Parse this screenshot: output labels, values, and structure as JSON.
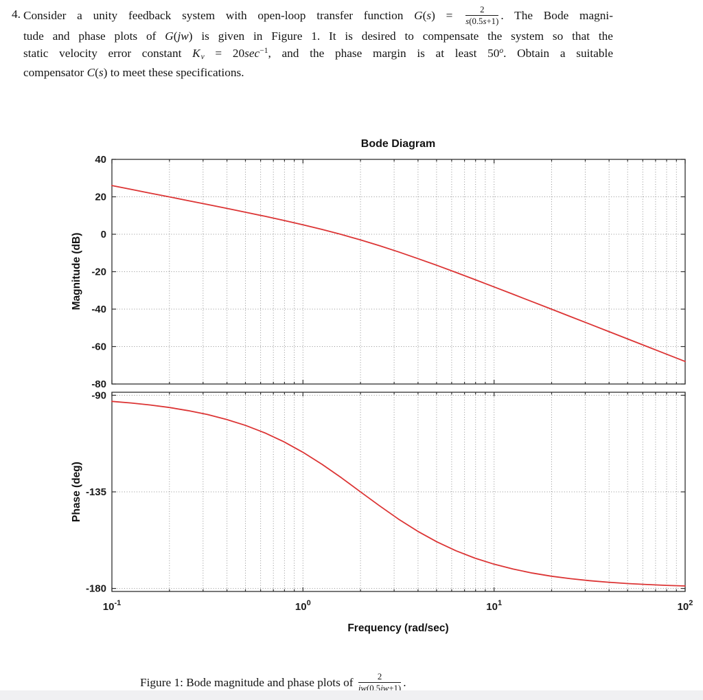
{
  "page": {
    "background": "#ffffff",
    "bottom_strip_color": "#f0f0f2"
  },
  "problem": {
    "number": "4.",
    "lines": [
      [
        {
          "t": "Consider a unity feedback system with open-loop transfer function "
        },
        {
          "t": "G",
          "i": 1
        },
        {
          "t": "("
        },
        {
          "t": "s",
          "i": 1
        },
        {
          "t": ") = "
        },
        {
          "frac": {
            "num": [
              {
                "t": "2"
              }
            ],
            "den": [
              {
                "t": "s",
                "i": 1
              },
              {
                "t": "(0.5"
              },
              {
                "t": "s",
                "i": 1
              },
              {
                "t": "+1)"
              }
            ]
          }
        },
        {
          "t": ". The Bode magni-"
        }
      ],
      [
        {
          "t": "tude and phase plots of "
        },
        {
          "t": "G",
          "i": 1
        },
        {
          "t": "("
        },
        {
          "t": "jw",
          "i": 1
        },
        {
          "t": ") is given in Figure 1. It is desired to compensate the system so that the"
        }
      ],
      [
        {
          "t": "static velocity error constant "
        },
        {
          "t": "K",
          "i": 1
        },
        {
          "t": "v",
          "i": 1,
          "sub": 1
        },
        {
          "t": " = 20"
        },
        {
          "t": "sec",
          "i": 1
        },
        {
          "t": "−1",
          "sup": 1
        },
        {
          "t": ", and the phase margin is at least 50"
        },
        {
          "t": "o",
          "i": 1,
          "sup": 1
        },
        {
          "t": ". Obtain a suitable"
        }
      ],
      [
        {
          "t": "compensator "
        },
        {
          "t": "C",
          "i": 1
        },
        {
          "t": "("
        },
        {
          "t": "s",
          "i": 1
        },
        {
          "t": ") to meet these specifications."
        }
      ]
    ]
  },
  "figure": {
    "caption": [
      {
        "t": "Figure 1: Bode magnitude and phase plots of "
      },
      {
        "frac": {
          "num": [
            {
              "t": "2"
            }
          ],
          "den": [
            {
              "t": "jw",
              "i": 1
            },
            {
              "t": "(0.5"
            },
            {
              "t": "jw",
              "i": 1
            },
            {
              "t": "+1)"
            }
          ]
        }
      },
      {
        "t": "."
      }
    ]
  },
  "chart_data": {
    "type": "line",
    "title": "Bode Diagram",
    "xlabel": "Frequency  (rad/sec)",
    "x_scale": "log",
    "xlim": [
      0.1,
      100
    ],
    "x_major_ticks": [
      0.1,
      1,
      10,
      100
    ],
    "x_tick_labels": [
      {
        "base": "10",
        "exp": "-1"
      },
      {
        "base": "10",
        "exp": "0"
      },
      {
        "base": "10",
        "exp": "1"
      },
      {
        "base": "10",
        "exp": "2"
      }
    ],
    "grid": true,
    "legend": "none",
    "line_color": "#dc3434",
    "grid_color": "#8f8f8f",
    "axis_color": "#2f2f2f",
    "subplots": [
      {
        "name": "magnitude",
        "ylabel": "Magnitude (dB)",
        "ylim": [
          40,
          -80
        ],
        "yticks": [
          40,
          20,
          0,
          -20,
          -40,
          -60,
          -80
        ],
        "grid_lines": [
          20,
          0,
          -20,
          -40,
          -60
        ]
      },
      {
        "name": "phase",
        "ylabel": "Phase (deg)",
        "ylim": [
          -90,
          -180
        ],
        "yticks": [
          -90,
          -135,
          -180
        ],
        "grid_lines": [
          -90,
          -135,
          -180
        ]
      }
    ],
    "series": {
      "name": "G(jw) = 2/(jw(0.5jw+1))",
      "freq_rad_per_sec": [
        0.1,
        0.126,
        0.158,
        0.2,
        0.251,
        0.316,
        0.398,
        0.501,
        0.631,
        0.794,
        1,
        1.259,
        1.585,
        1.995,
        2.512,
        3.162,
        3.981,
        5.012,
        6.31,
        7.943,
        10,
        12.589,
        15.849,
        19.953,
        25.119,
        31.623,
        39.811,
        50.119,
        63.096,
        79.433,
        100
      ],
      "magnitude_db": [
        26.01,
        24.0,
        21.99,
        19.98,
        17.95,
        15.91,
        13.85,
        11.76,
        9.61,
        7.38,
        5.05,
        2.57,
        -0.1,
        -2.98,
        -6.09,
        -9.42,
        -12.94,
        -16.6,
        -20.37,
        -24.23,
        -28.13,
        -32.07,
        -36.03,
        -40.0,
        -43.99,
        -47.98,
        -51.97,
        -55.97,
        -59.96,
        -63.96,
        -67.96
      ],
      "phase_deg": [
        -92.86,
        -93.6,
        -94.53,
        -95.7,
        -97.16,
        -98.98,
        -101.26,
        -104.07,
        -107.51,
        -111.66,
        -116.57,
        -122.19,
        -128.39,
        -134.93,
        -141.47,
        -147.69,
        -153.34,
        -158.26,
        -162.41,
        -165.87,
        -168.69,
        -170.97,
        -172.81,
        -174.28,
        -175.45,
        -176.38,
        -177.12,
        -177.71,
        -178.18,
        -178.56,
        -178.85
      ]
    }
  }
}
